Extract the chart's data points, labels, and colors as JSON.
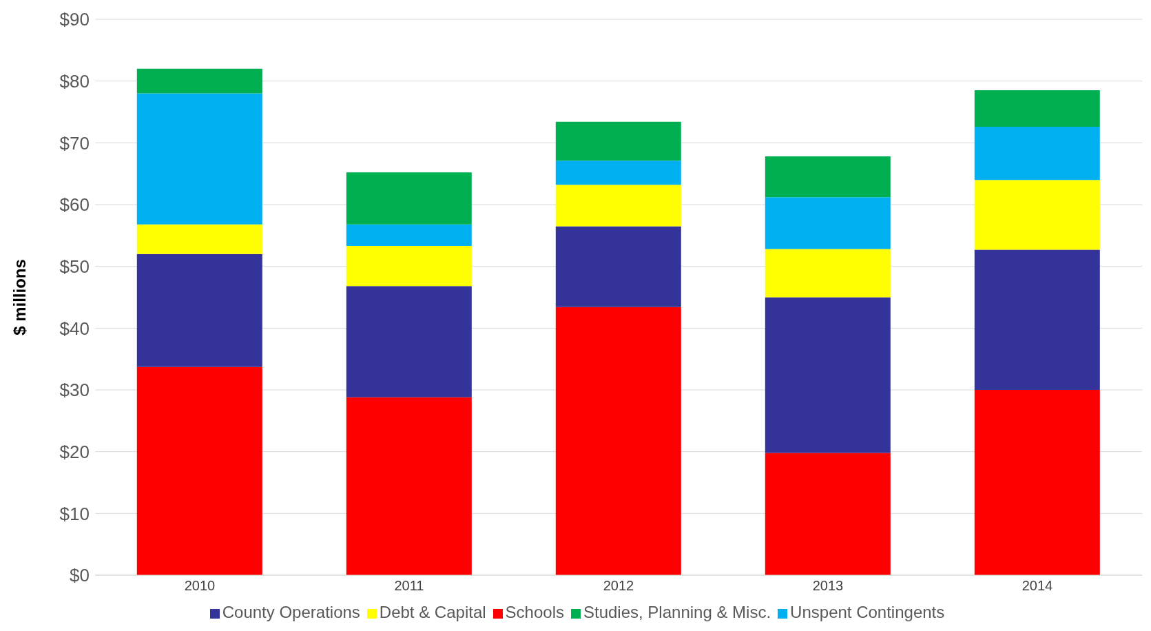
{
  "chart_data": {
    "type": "bar",
    "stacked": true,
    "ylabel": "$ millions",
    "categories": [
      "2010",
      "2011",
      "2012",
      "2013",
      "2014"
    ],
    "series": [
      {
        "name": "Schools",
        "color": "#ff0000",
        "values": [
          33.7,
          28.8,
          43.4,
          19.8,
          30.0
        ]
      },
      {
        "name": "County Operations",
        "color": "#333399",
        "values": [
          18.3,
          18.0,
          13.1,
          25.2,
          22.7
        ]
      },
      {
        "name": "Debt & Capital",
        "color": "#ffff00",
        "values": [
          4.8,
          6.5,
          6.7,
          7.8,
          11.3
        ]
      },
      {
        "name": "Unspent Contingents",
        "color": "#00b0f0",
        "values": [
          21.2,
          3.5,
          3.9,
          8.4,
          8.6
        ]
      },
      {
        "name": "Studies, Planning & Misc.",
        "color": "#00b050",
        "values": [
          4.0,
          8.4,
          6.3,
          6.6,
          5.9
        ]
      }
    ],
    "ylim": [
      0,
      90
    ],
    "yticks": [
      {
        "value": 0,
        "label": "$0"
      },
      {
        "value": 10,
        "label": "$10"
      },
      {
        "value": 20,
        "label": "$20"
      },
      {
        "value": 30,
        "label": "$30"
      },
      {
        "value": 40,
        "label": "$40"
      },
      {
        "value": 50,
        "label": "$50"
      },
      {
        "value": 60,
        "label": "$60"
      },
      {
        "value": 70,
        "label": "$70"
      },
      {
        "value": 80,
        "label": "$80"
      },
      {
        "value": 90,
        "label": "$90"
      }
    ],
    "grid": "y",
    "legend": "bottom"
  }
}
